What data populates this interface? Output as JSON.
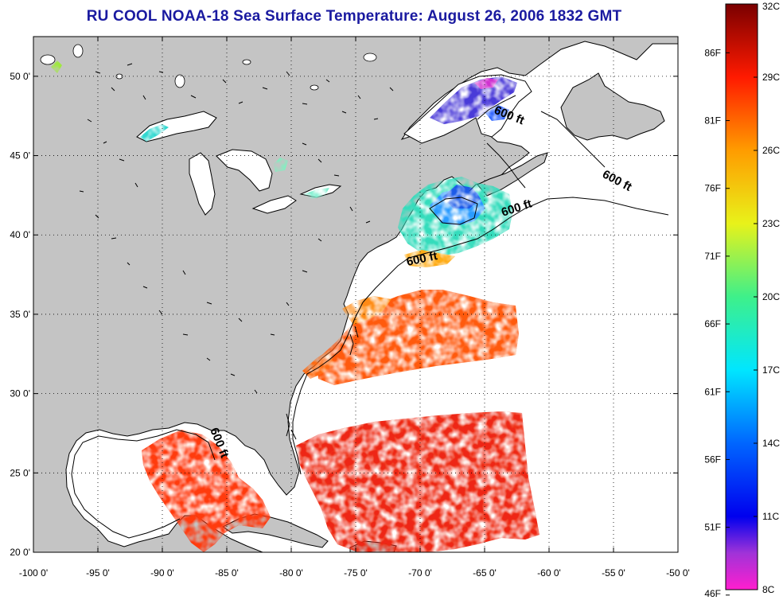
{
  "title": "RU COOL  NOAA-18  Sea Surface Temperature:  August 26, 2006 1832 GMT",
  "map": {
    "lon_range": [
      -100,
      -50
    ],
    "lat_range": [
      20,
      52.5
    ],
    "lon_ticks": [
      {
        "value": -100,
        "label": "-100 0'"
      },
      {
        "value": -95,
        "label": "-95 0'"
      },
      {
        "value": -90,
        "label": "-90 0'"
      },
      {
        "value": -85,
        "label": "-85 0'"
      },
      {
        "value": -80,
        "label": "-80 0'"
      },
      {
        "value": -75,
        "label": "-75 0'"
      },
      {
        "value": -70,
        "label": "-70 0'"
      },
      {
        "value": -65,
        "label": "-65 0'"
      },
      {
        "value": -60,
        "label": "-60 0'"
      },
      {
        "value": -55,
        "label": "-55 0'"
      },
      {
        "value": -50,
        "label": "-50 0'"
      }
    ],
    "lat_ticks": [
      {
        "value": 20,
        "label": "20 0'"
      },
      {
        "value": 25,
        "label": "25 0'"
      },
      {
        "value": 30,
        "label": "30 0'"
      },
      {
        "value": 35,
        "label": "35 0'"
      },
      {
        "value": 40,
        "label": "40 0'"
      },
      {
        "value": 45,
        "label": "45 0'"
      },
      {
        "value": 50,
        "label": "50 0'"
      }
    ],
    "grid": "dotted",
    "contour_label": "600 ft",
    "colors": {
      "land": "#c4c4c4",
      "water_no_data": "#ffffff",
      "coast": "#000000"
    }
  },
  "colorbar": {
    "min_c": 8,
    "max_c": 32,
    "celsius_labels": [
      "8C",
      "11C",
      "14C",
      "17C",
      "20C",
      "23C",
      "26C",
      "29C",
      "32C"
    ],
    "fahrenheit_labels": [
      "46F",
      "51F",
      "56F",
      "61F",
      "66F",
      "71F",
      "76F",
      "81F",
      "86F"
    ],
    "fahrenheit_values": [
      46,
      51,
      56,
      61,
      66,
      71,
      76,
      81,
      86
    ],
    "stops": [
      {
        "c": 8,
        "color": "#ff1ecf"
      },
      {
        "c": 9.5,
        "color": "#a033d8"
      },
      {
        "c": 11,
        "color": "#0000ee"
      },
      {
        "c": 14,
        "color": "#0066ff"
      },
      {
        "c": 17,
        "color": "#00e6ff"
      },
      {
        "c": 20,
        "color": "#3ef08a"
      },
      {
        "c": 23,
        "color": "#e8f21a"
      },
      {
        "c": 26,
        "color": "#ff9c00"
      },
      {
        "c": 29,
        "color": "#ff1a00"
      },
      {
        "c": 32,
        "color": "#7a0000"
      }
    ]
  }
}
